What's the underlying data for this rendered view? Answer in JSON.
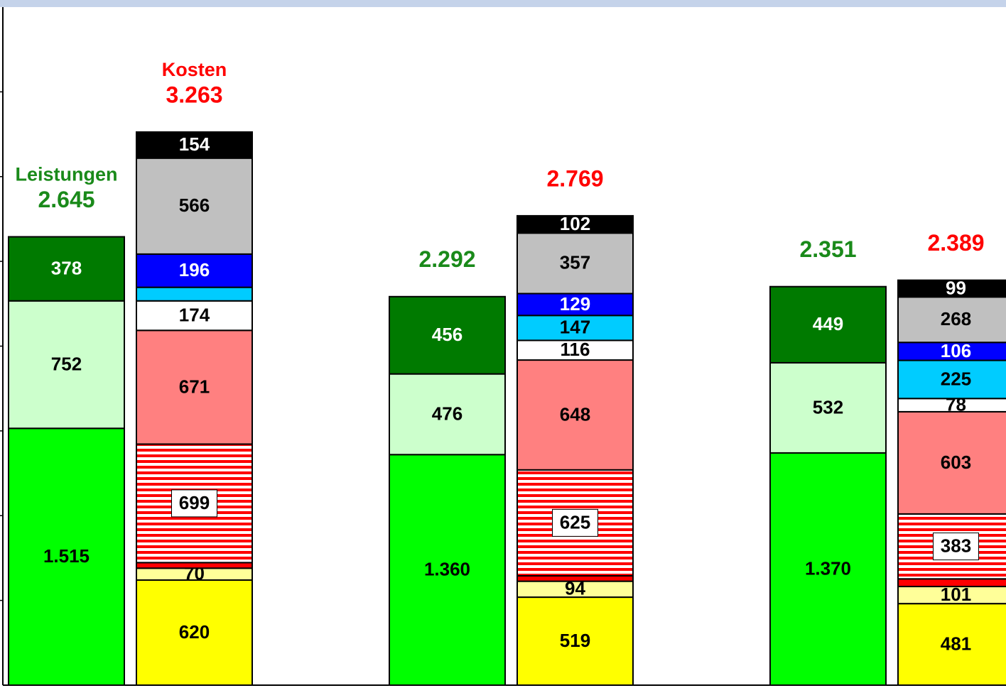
{
  "chart_data": {
    "type": "stacked_bar",
    "categories": [
      null,
      null,
      null
    ],
    "ylim": [
      0,
      4000
    ],
    "yticks": [
      500,
      1000,
      1500,
      2000,
      2500,
      3000,
      3500
    ],
    "stacks": [
      {
        "label": "Leistungen",
        "label_color": "#1a8a1a",
        "totals": [
          2645,
          2292,
          2351
        ],
        "total_labels": [
          "2.645",
          "2.292",
          "2.351"
        ],
        "series": [
          {
            "color": "#00ff00",
            "label_color": "#000000",
            "values": [
              1515,
              1360,
              1370
            ],
            "value_labels": [
              "1.515",
              "1.360",
              "1.370"
            ]
          },
          {
            "color": "#ccffcc",
            "label_color": "#000000",
            "values": [
              752,
              476,
              532
            ]
          },
          {
            "color": "#007a00",
            "label_color": "#ffffff",
            "values": [
              378,
              456,
              449
            ]
          }
        ]
      },
      {
        "label": "Kosten",
        "label_color": "#ff0000",
        "totals": [
          3263,
          2769,
          2389
        ],
        "total_labels": [
          "3.263",
          "2.769",
          "2.389"
        ],
        "series": [
          {
            "color": "#ffff00",
            "label_color": "#000000",
            "values": [
              620,
              519,
              481
            ]
          },
          {
            "color": "#ffff99",
            "label_color": "#000000",
            "values": [
              70,
              94,
              101
            ]
          },
          {
            "color": "#ff0000",
            "label_color": "#000000",
            "values": [
              33,
              32,
              45
            ],
            "value_labels": [
              null,
              null,
              null
            ]
          },
          {
            "color": "#ff0000",
            "pattern": "stripes",
            "label_color": "#000000",
            "label_box": true,
            "values": [
              699,
              625,
              383
            ]
          },
          {
            "color": "#ff8080",
            "label_color": "#000000",
            "values": [
              671,
              648,
              603
            ]
          },
          {
            "color": "#ffffff",
            "label_color": "#000000",
            "label_weight": "normal",
            "values": [
              174,
              116,
              78
            ]
          },
          {
            "color": "#00ccff",
            "label_color": "#000000",
            "values": [
              80,
              147,
              225
            ],
            "value_labels": [
              null,
              "147",
              "225"
            ]
          },
          {
            "color": "#0000ff",
            "label_color": "#ffffff",
            "values": [
              196,
              129,
              106
            ]
          },
          {
            "color": "#c0c0c0",
            "label_color": "#000000",
            "values": [
              566,
              357,
              268
            ]
          },
          {
            "color": "#000000",
            "label_color": "#ffffff",
            "values": [
              154,
              102,
              99
            ]
          }
        ]
      }
    ]
  }
}
